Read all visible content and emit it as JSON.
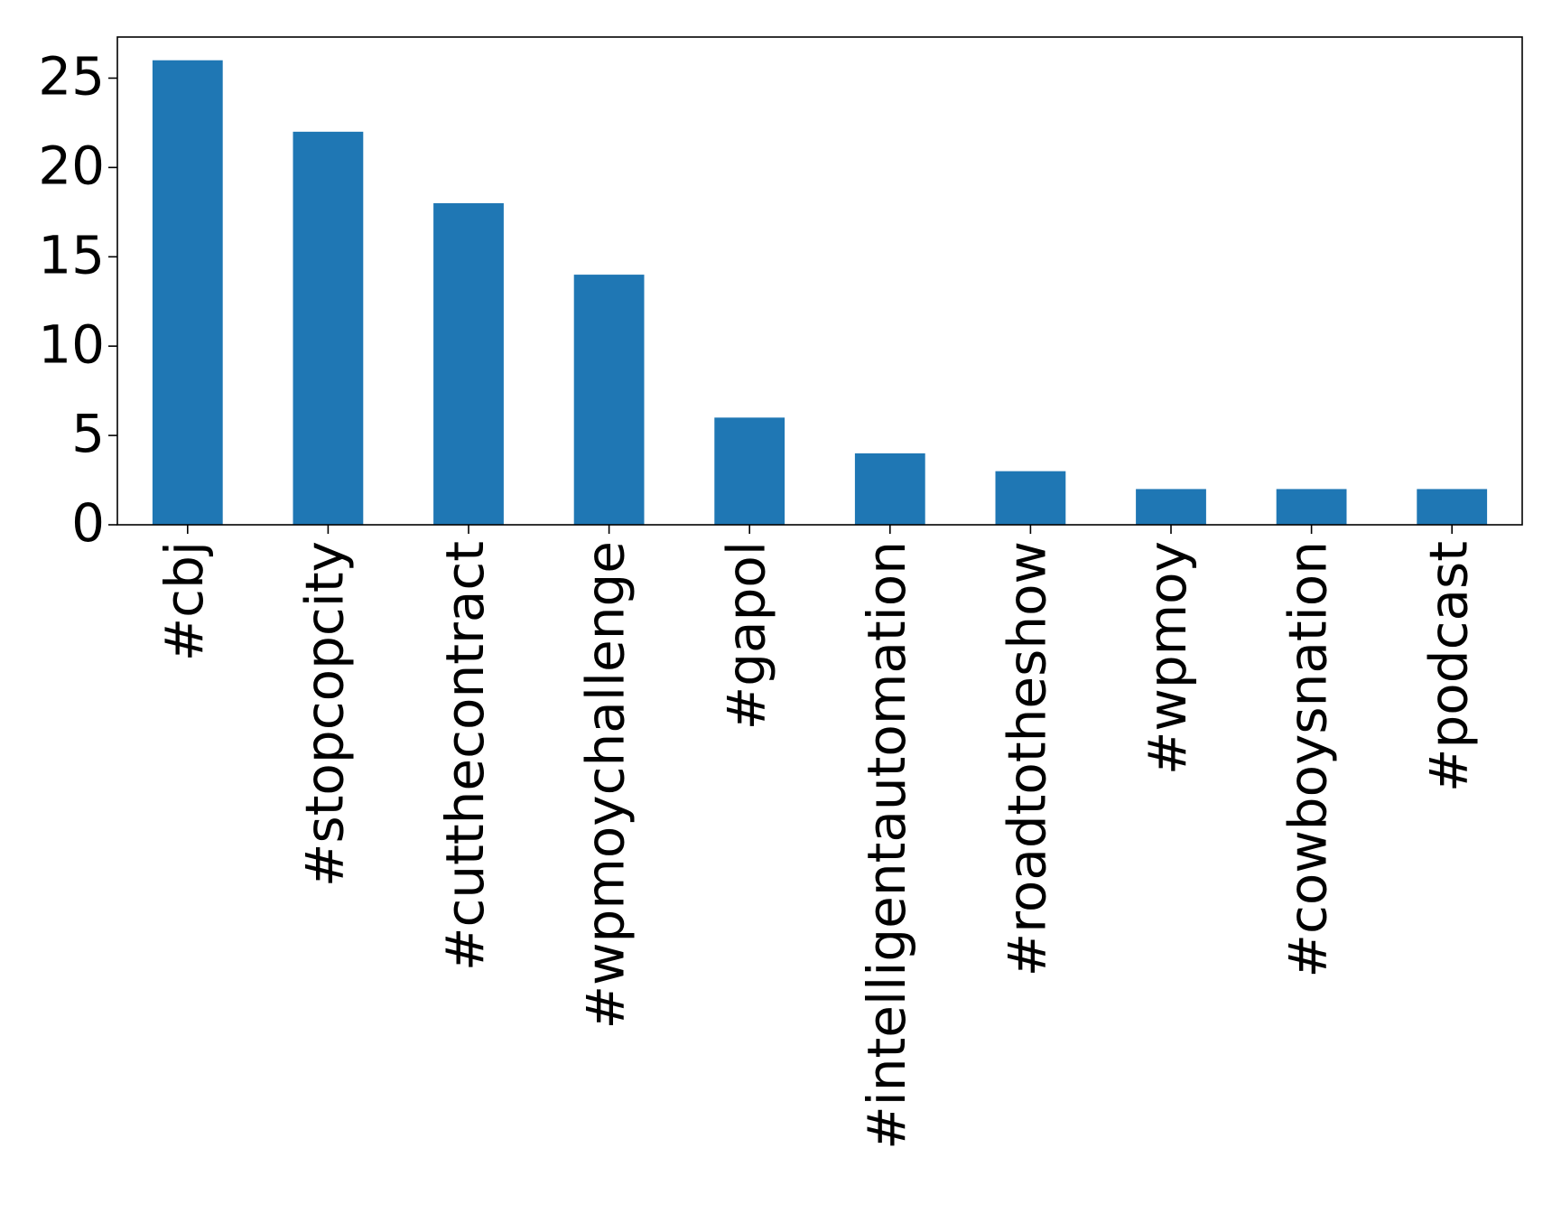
{
  "chart_data": {
    "type": "bar",
    "categories": [
      "#cbj",
      "#stopcopcity",
      "#cutthecontract",
      "#wpmoychallenge",
      "#gapol",
      "#intelligentautomation",
      "#roadtotheshow",
      "#wpmoy",
      "#cowboysnation",
      "#podcast"
    ],
    "values": [
      26,
      22,
      18,
      14,
      6,
      4,
      3,
      2,
      2,
      2
    ],
    "ylim": [
      0,
      27.3
    ],
    "yticks": [
      0,
      5,
      10,
      15,
      20,
      25
    ],
    "bar_color": "#1f77b4",
    "grid": false,
    "legend": "none",
    "title": "",
    "xlabel": "",
    "ylabel": ""
  }
}
